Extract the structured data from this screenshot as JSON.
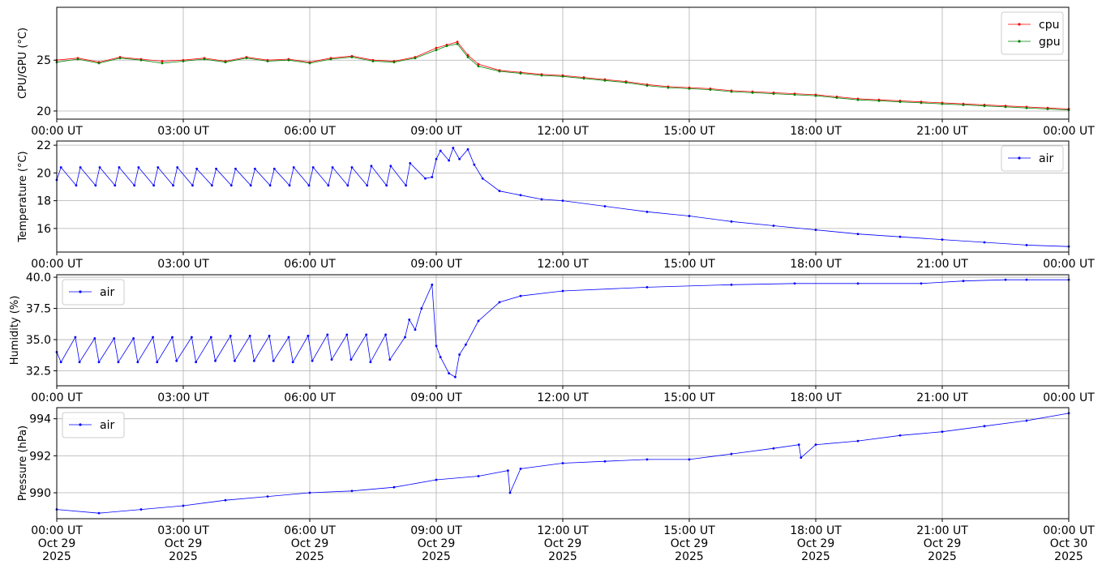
{
  "chart_data": [
    {
      "type": "line",
      "ylabel": "CPU/GPU (°C)",
      "ylim": [
        19.2,
        30.2
      ],
      "yticks": [
        20,
        25
      ],
      "xlim": [
        0,
        24
      ],
      "xtick_values": [
        0,
        3,
        6,
        9,
        12,
        15,
        18,
        21,
        24
      ],
      "xtick_labels": [
        "00:00 UT",
        "03:00 UT",
        "06:00 UT",
        "09:00 UT",
        "12:00 UT",
        "15:00 UT",
        "18:00 UT",
        "21:00 UT",
        "00:00 UT"
      ],
      "grid": true,
      "legend_position": "upper right",
      "series": [
        {
          "name": "cpu",
          "color": "#ff0000",
          "x": [
            0,
            0.5,
            1,
            1.5,
            2,
            2.5,
            3,
            3.5,
            4,
            4.5,
            5,
            5.5,
            6,
            6.5,
            7,
            7.5,
            8,
            8.5,
            9,
            9.25,
            9.5,
            9.75,
            10,
            10.5,
            11,
            11.5,
            12,
            12.5,
            13,
            13.5,
            14,
            14.5,
            15,
            15.5,
            16,
            16.5,
            17,
            17.5,
            18,
            18.5,
            19,
            19.5,
            20,
            20.5,
            21,
            21.5,
            22,
            22.5,
            23,
            23.5,
            24
          ],
          "y": [
            25.0,
            25.2,
            24.8,
            25.3,
            25.1,
            24.9,
            25.0,
            25.2,
            24.9,
            25.3,
            25.0,
            25.1,
            24.8,
            25.2,
            25.4,
            25.0,
            24.9,
            25.3,
            26.2,
            26.5,
            26.8,
            25.5,
            24.6,
            24.0,
            23.8,
            23.6,
            23.5,
            23.3,
            23.1,
            22.9,
            22.6,
            22.4,
            22.3,
            22.2,
            22.0,
            21.9,
            21.8,
            21.7,
            21.6,
            21.4,
            21.2,
            21.1,
            21.0,
            20.9,
            20.8,
            20.7,
            20.6,
            20.5,
            20.4,
            20.3,
            20.2
          ]
        },
        {
          "name": "gpu",
          "color": "#008000",
          "x": [
            0,
            0.5,
            1,
            1.5,
            2,
            2.5,
            3,
            3.5,
            4,
            4.5,
            5,
            5.5,
            6,
            6.5,
            7,
            7.5,
            8,
            8.5,
            9,
            9.25,
            9.5,
            9.75,
            10,
            10.5,
            11,
            11.5,
            12,
            12.5,
            13,
            13.5,
            14,
            14.5,
            15,
            15.5,
            16,
            16.5,
            17,
            17.5,
            18,
            18.5,
            19,
            19.5,
            20,
            20.5,
            21,
            21.5,
            22,
            22.5,
            23,
            23.5,
            24
          ],
          "y": [
            24.8,
            25.1,
            24.7,
            25.2,
            25.0,
            24.7,
            24.9,
            25.1,
            24.8,
            25.2,
            24.9,
            25.0,
            24.7,
            25.1,
            25.3,
            24.9,
            24.8,
            25.2,
            26.0,
            26.4,
            26.6,
            25.3,
            24.4,
            23.9,
            23.7,
            23.5,
            23.4,
            23.2,
            23.0,
            22.8,
            22.5,
            22.3,
            22.2,
            22.1,
            21.9,
            21.8,
            21.7,
            21.6,
            21.5,
            21.3,
            21.1,
            21.0,
            20.9,
            20.8,
            20.7,
            20.6,
            20.5,
            20.4,
            20.3,
            20.2,
            20.1
          ]
        }
      ]
    },
    {
      "type": "line",
      "ylabel": "Temperature (°C)",
      "ylim": [
        14.3,
        22.3
      ],
      "yticks": [
        16,
        18,
        20,
        22
      ],
      "xlim": [
        0,
        24
      ],
      "xtick_values": [
        0,
        3,
        6,
        9,
        12,
        15,
        18,
        21,
        24
      ],
      "xtick_labels": [
        "00:00 UT",
        "03:00 UT",
        "06:00 UT",
        "09:00 UT",
        "12:00 UT",
        "15:00 UT",
        "18:00 UT",
        "21:00 UT",
        "00:00 UT"
      ],
      "grid": true,
      "legend_position": "upper right",
      "series": [
        {
          "name": "air",
          "color": "#0000ff",
          "x": [
            0,
            0.1,
            0.46,
            0.56,
            0.92,
            1.02,
            1.38,
            1.48,
            1.84,
            1.94,
            2.3,
            2.4,
            2.76,
            2.86,
            3.22,
            3.32,
            3.68,
            3.78,
            4.14,
            4.24,
            4.6,
            4.7,
            5.06,
            5.16,
            5.52,
            5.62,
            5.98,
            6.08,
            6.44,
            6.54,
            6.9,
            7.0,
            7.36,
            7.46,
            7.82,
            7.92,
            8.28,
            8.38,
            8.74,
            8.9,
            9.0,
            9.1,
            9.3,
            9.4,
            9.55,
            9.75,
            9.9,
            10.1,
            10.5,
            11.0,
            11.5,
            12.0,
            13.0,
            14.0,
            15.0,
            16.0,
            17.0,
            18.0,
            19.0,
            20.0,
            21.0,
            22.0,
            23.0,
            24.0
          ],
          "y": [
            19.5,
            20.4,
            19.1,
            20.4,
            19.1,
            20.4,
            19.1,
            20.4,
            19.1,
            20.4,
            19.1,
            20.4,
            19.1,
            20.4,
            19.1,
            20.3,
            19.1,
            20.3,
            19.1,
            20.3,
            19.1,
            20.3,
            19.1,
            20.3,
            19.1,
            20.4,
            19.1,
            20.4,
            19.1,
            20.4,
            19.1,
            20.4,
            19.1,
            20.5,
            19.1,
            20.5,
            19.1,
            20.7,
            19.6,
            19.7,
            21.0,
            21.6,
            20.9,
            21.8,
            21.0,
            21.7,
            20.6,
            19.6,
            18.7,
            18.4,
            18.1,
            18.0,
            17.6,
            17.2,
            16.9,
            16.5,
            16.2,
            15.9,
            15.6,
            15.4,
            15.2,
            15.0,
            14.8,
            14.7
          ]
        }
      ]
    },
    {
      "type": "line",
      "ylabel": "Humidity (%)",
      "ylim": [
        31.3,
        40.2
      ],
      "yticks": [
        32.5,
        35.0,
        37.5,
        40.0
      ],
      "xlim": [
        0,
        24
      ],
      "xtick_values": [
        0,
        3,
        6,
        9,
        12,
        15,
        18,
        21,
        24
      ],
      "xtick_labels": [
        "00:00 UT",
        "03:00 UT",
        "06:00 UT",
        "09:00 UT",
        "12:00 UT",
        "15:00 UT",
        "18:00 UT",
        "21:00 UT",
        "00:00 UT"
      ],
      "grid": true,
      "legend_position": "upper left",
      "series": [
        {
          "name": "air",
          "color": "#0000ff",
          "x": [
            0,
            0.1,
            0.44,
            0.54,
            0.9,
            1.0,
            1.36,
            1.46,
            1.82,
            1.92,
            2.28,
            2.38,
            2.74,
            2.84,
            3.2,
            3.3,
            3.66,
            3.76,
            4.12,
            4.22,
            4.58,
            4.68,
            5.04,
            5.14,
            5.5,
            5.6,
            5.96,
            6.06,
            6.42,
            6.52,
            6.88,
            6.98,
            7.34,
            7.44,
            7.8,
            7.9,
            8.26,
            8.36,
            8.5,
            8.65,
            8.9,
            9.0,
            9.1,
            9.3,
            9.45,
            9.55,
            9.7,
            10.0,
            10.5,
            11.0,
            12.0,
            14.0,
            16.0,
            17.5,
            19.0,
            20.5,
            21.5,
            22.5,
            23.0,
            24.0
          ],
          "y": [
            34.0,
            33.2,
            35.2,
            33.2,
            35.1,
            33.2,
            35.1,
            33.2,
            35.1,
            33.2,
            35.2,
            33.2,
            35.2,
            33.3,
            35.2,
            33.2,
            35.2,
            33.3,
            35.3,
            33.3,
            35.3,
            33.3,
            35.3,
            33.3,
            35.2,
            33.2,
            35.3,
            33.3,
            35.4,
            33.4,
            35.4,
            33.4,
            35.4,
            33.2,
            35.4,
            33.4,
            35.2,
            36.6,
            35.8,
            37.5,
            39.4,
            34.5,
            33.6,
            32.3,
            32.0,
            33.8,
            34.6,
            36.5,
            38.0,
            38.5,
            38.9,
            39.2,
            39.4,
            39.5,
            39.5,
            39.5,
            39.7,
            39.8,
            39.8,
            39.8
          ]
        }
      ]
    },
    {
      "type": "line",
      "ylabel": "Pressure (hPa)",
      "ylim": [
        988.6,
        994.6
      ],
      "yticks": [
        990,
        992,
        994
      ],
      "xlim": [
        0,
        24
      ],
      "xtick_values": [
        0,
        3,
        6,
        9,
        12,
        15,
        18,
        21,
        24
      ],
      "xtick_labels": [
        "00:00 UT\nOct 29\n2025",
        "03:00 UT\nOct 29\n2025",
        "06:00 UT\nOct 29\n2025",
        "09:00 UT\nOct 29\n2025",
        "12:00 UT\nOct 29\n2025",
        "15:00 UT\nOct 29\n2025",
        "18:00 UT\nOct 29\n2025",
        "21:00 UT\nOct 29\n2025",
        "00:00 UT\nOct 30\n2025"
      ],
      "grid": true,
      "legend_position": "upper left",
      "series": [
        {
          "name": "air",
          "color": "#0000ff",
          "x": [
            0,
            1,
            2,
            3,
            4,
            5,
            6,
            7,
            8,
            9,
            10,
            10.7,
            10.75,
            11,
            12,
            13,
            14,
            15,
            16,
            17,
            17.6,
            17.65,
            18,
            19,
            20,
            21,
            22,
            23,
            24
          ],
          "y": [
            989.1,
            988.9,
            989.1,
            989.3,
            989.6,
            989.8,
            990.0,
            990.1,
            990.3,
            990.7,
            990.9,
            991.2,
            990.0,
            991.3,
            991.6,
            991.7,
            991.8,
            991.8,
            992.1,
            992.4,
            992.6,
            991.9,
            992.6,
            992.8,
            993.1,
            993.3,
            993.6,
            993.9,
            994.3
          ]
        }
      ]
    }
  ]
}
